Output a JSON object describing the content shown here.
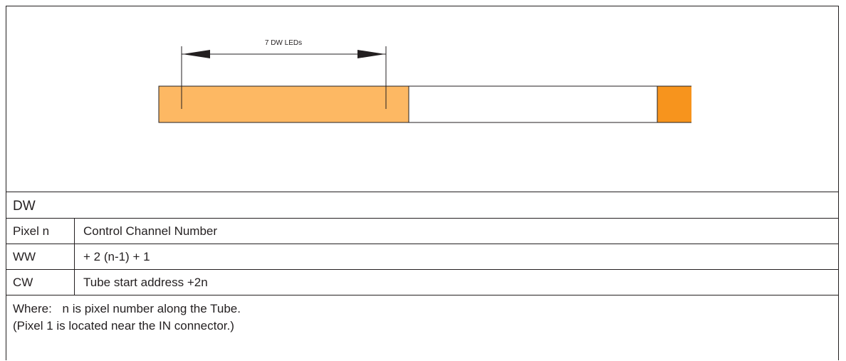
{
  "figure": {
    "dimension_label": "7 DW LEDs",
    "colors": {
      "dw_section": "#fdb863",
      "empty_section": "#ffffff",
      "end_cap": "#f7941d",
      "outline": "#231f20"
    }
  },
  "table": {
    "section_title": "DW",
    "header": {
      "col1": "Pixel n",
      "col2": "Control Channel Number"
    },
    "rows": [
      {
        "col1": "WW",
        "col2": "+ 2 (n-1) + 1"
      },
      {
        "col1": "CW",
        "col2": "Tube start address +2n"
      }
    ]
  },
  "note": {
    "label": "Where:",
    "text": "n is pixel number along the Tube.",
    "text2": "(Pixel 1 is located near the IN connector.)"
  }
}
